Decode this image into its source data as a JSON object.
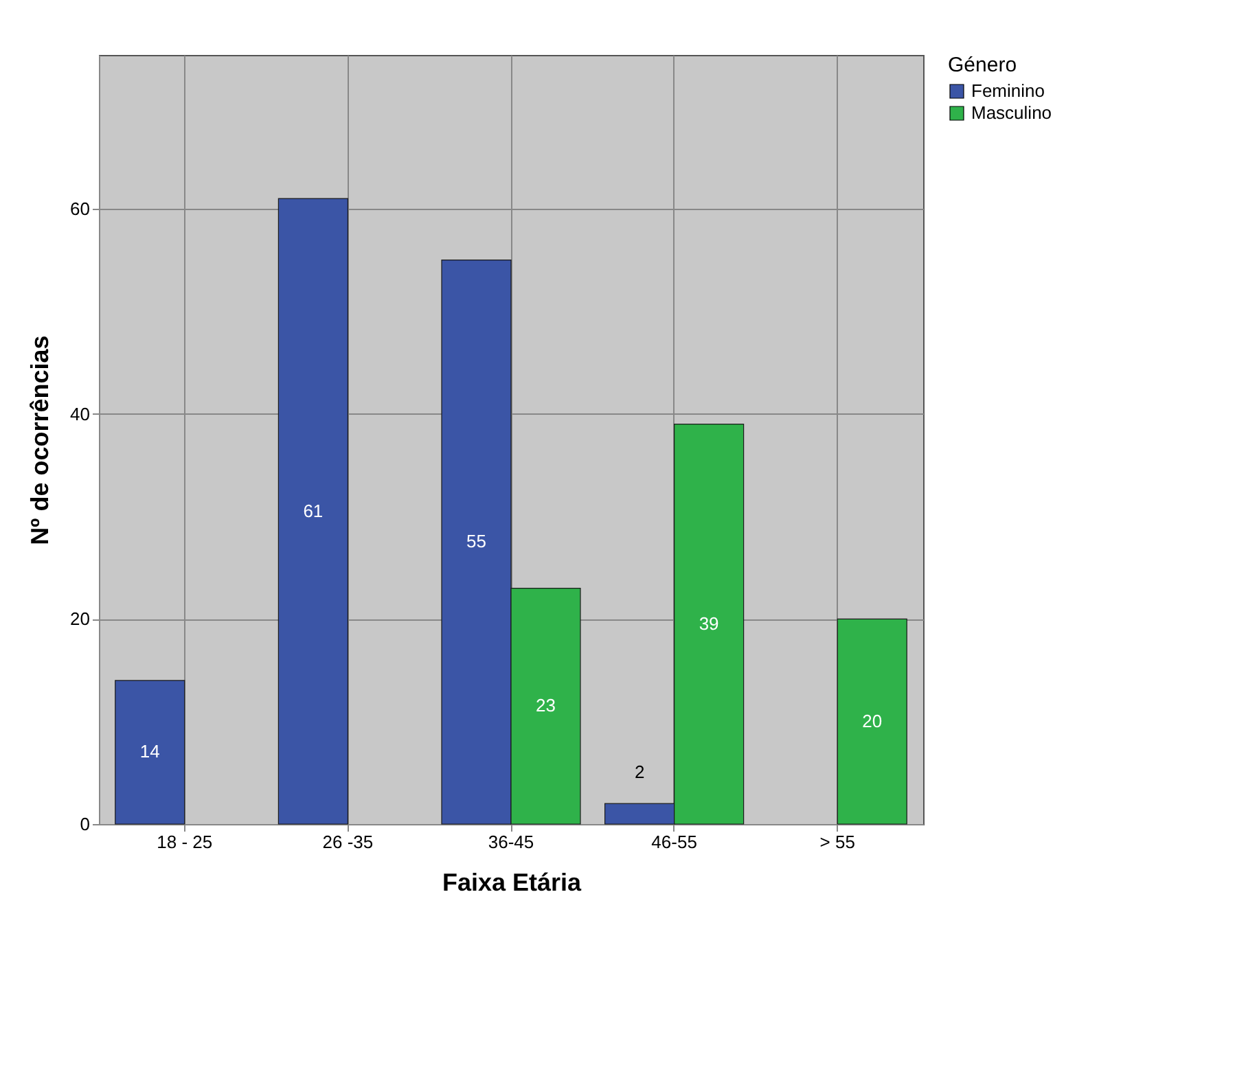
{
  "chart_data": {
    "type": "bar",
    "xlabel": "Faixa Etária",
    "ylabel": "Nº de ocorrências",
    "legend_title": "Género",
    "categories": [
      "18 - 25",
      "26 -35",
      "36-45",
      "46-55",
      "> 55"
    ],
    "series": [
      {
        "name": "Feminino",
        "color": "#3b55a6",
        "values": [
          14,
          61,
          55,
          2,
          null
        ]
      },
      {
        "name": "Masculino",
        "color": "#2fb24a",
        "values": [
          null,
          null,
          23,
          39,
          20
        ]
      }
    ],
    "ylim": [
      0,
      75
    ],
    "yticks": [
      0,
      20,
      40,
      60
    ],
    "grid": true,
    "legend": "top right",
    "data_labels": true
  }
}
